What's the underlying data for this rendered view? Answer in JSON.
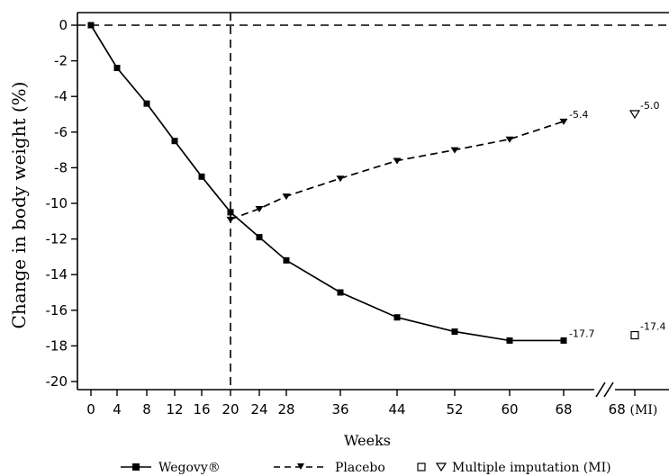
{
  "chart_data": {
    "type": "line",
    "xlabel": "Weeks",
    "ylabel": "Change in body weight (%)",
    "ylim": [
      -20,
      0
    ],
    "yticks": [
      0,
      -2,
      -4,
      -6,
      -8,
      -10,
      -12,
      -14,
      -16,
      -18,
      -20
    ],
    "x_tick_labels": [
      "0",
      "4",
      "8",
      "12",
      "16",
      "20",
      "24",
      "28",
      "36",
      "44",
      "52",
      "60",
      "68"
    ],
    "mi_tick_label": "68 (MI)",
    "grid": false,
    "legend_position": "bottom",
    "series": [
      {
        "name": "Wegovy®",
        "marker": "filled-square",
        "line": "solid",
        "x": [
          0,
          4,
          8,
          12,
          16,
          20,
          24,
          28,
          36,
          44,
          52,
          60,
          68
        ],
        "y": [
          0,
          -2.4,
          -4.4,
          -6.5,
          -8.5,
          -10.5,
          -11.9,
          -13.2,
          -15.0,
          -16.4,
          -17.2,
          -17.7,
          -17.7
        ],
        "end_label": "-17.7",
        "mi_value": -17.4,
        "mi_label": "-17.4",
        "mi_marker": "open-square"
      },
      {
        "name": "Placebo",
        "marker": "filled-down-triangle",
        "line": "dashed",
        "x": [
          20,
          24,
          28,
          36,
          44,
          52,
          60,
          68
        ],
        "y": [
          -10.9,
          -10.3,
          -9.6,
          -8.6,
          -7.6,
          -7.0,
          -6.4,
          -5.4
        ],
        "end_label": "-5.4",
        "mi_value": -5.0,
        "mi_label": "-5.0",
        "mi_marker": "open-down-triangle"
      }
    ],
    "reference_lines": {
      "horizontal_y": 0,
      "vertical_x": 20
    },
    "legend": {
      "wegovy": "Wegovy®",
      "placebo": "Placebo",
      "mi": "Multiple imputation (MI)"
    }
  }
}
